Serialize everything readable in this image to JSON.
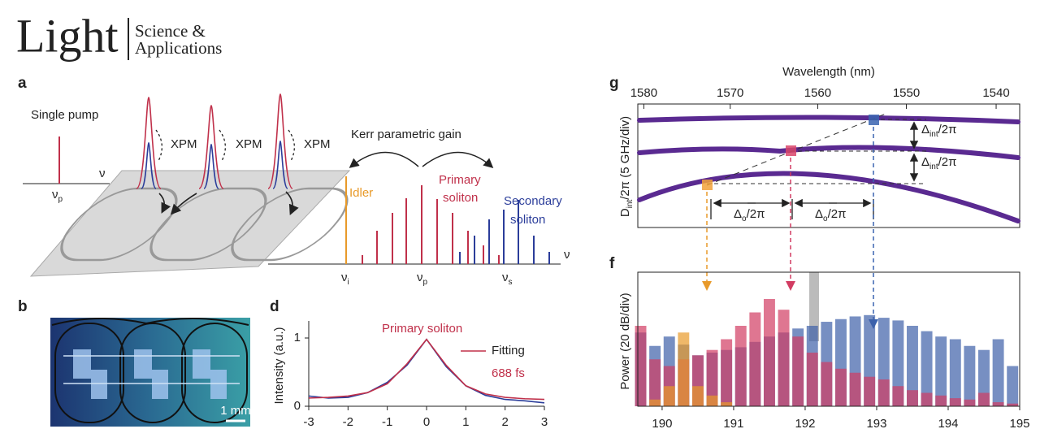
{
  "header": {
    "title": "Light",
    "subtitle_lines": [
      "Science &",
      "Applications"
    ]
  },
  "panel_a": {
    "label": "a",
    "single_pump": "Single pump",
    "axis_symbol": "ν",
    "pump": {
      "symbol": "ν",
      "sub": "p"
    },
    "xpm": [
      "XPM",
      "XPM",
      "XPM"
    ],
    "gain": "Kerr parametric gain",
    "idler": "Idler",
    "primary": [
      "Primary",
      "soliton"
    ],
    "secondary": [
      "Secondary",
      "soliton"
    ],
    "comb_axis_symbol": "ν",
    "comb_ticks": [
      {
        "symbol": "ν",
        "sub": "i"
      },
      {
        "symbol": "ν",
        "sub": "p"
      },
      {
        "symbol": "ν",
        "sub": "s"
      }
    ]
  },
  "panel_b": {
    "label": "b",
    "scale_bar": "1 mm"
  },
  "panel_g": {
    "label": "g",
    "xlabel": "Wavelength (nm)",
    "ylabel": {
      "main": "D",
      "sub": "int",
      "rest": "/2π (5 GHz/div)"
    },
    "xlim": [
      1580.7,
      1537.4
    ],
    "xticks": [
      1580,
      1570,
      1560,
      1550,
      1540
    ],
    "delta_int": {
      "main": "Δ",
      "sub": "int",
      "rest": "/2π"
    },
    "delta_o": {
      "main": "Δ",
      "sub": "o",
      "rest": "/2π"
    }
  },
  "chart_data": [
    {
      "type": "line",
      "label": "d",
      "annotation": "Primary soliton",
      "duration": "688 fs",
      "ylabel": "Intensity (a.u.)",
      "x": [
        -3,
        -2.5,
        -2,
        -1.5,
        -1,
        -0.5,
        0,
        0.5,
        1,
        1.5,
        2,
        2.5,
        3
      ],
      "series": [
        {
          "color": "#2b3d9a",
          "values": [
            0.15,
            0.12,
            0.13,
            0.2,
            0.35,
            0.6,
            0.98,
            0.58,
            0.3,
            0.16,
            0.1,
            0.08,
            0.05
          ]
        },
        {
          "name": "Fitting",
          "color": "#c0304a",
          "values": [
            0.12,
            0.13,
            0.15,
            0.2,
            0.33,
            0.62,
            0.98,
            0.6,
            0.3,
            0.18,
            0.13,
            0.11,
            0.1
          ]
        }
      ],
      "xlim": [
        -3,
        3
      ],
      "ylim": [
        0,
        1.25
      ],
      "xticks": [
        -3,
        -2,
        -1,
        0,
        1,
        2,
        3
      ],
      "yticks": [
        0,
        1
      ]
    },
    {
      "type": "bar",
      "label": "f",
      "ylabel": "Power (20 dB/div)",
      "x": [
        189.7,
        189.9,
        190.1,
        190.3,
        190.5,
        190.7,
        190.9,
        191.1,
        191.3,
        191.5,
        191.7,
        191.9,
        192.1,
        192.3,
        192.5,
        192.7,
        192.9,
        193.1,
        193.3,
        193.5,
        193.7,
        193.9,
        194.1,
        194.3,
        194.5,
        194.7,
        194.9
      ],
      "series": [
        {
          "color": "#3d5fa8",
          "values": [
            0.55,
            0.45,
            0.52,
            0.46,
            0.38,
            0.4,
            0.42,
            0.44,
            0.48,
            0.52,
            0.55,
            0.58,
            0.6,
            0.63,
            0.65,
            0.67,
            0.68,
            0.66,
            0.64,
            0.6,
            0.56,
            0.52,
            0.5,
            0.45,
            0.42,
            0.5,
            0.3
          ]
        },
        {
          "color": "#d23c62",
          "values": [
            0.6,
            0.35,
            0.3,
            0.35,
            0.38,
            0.42,
            0.5,
            0.6,
            0.7,
            0.8,
            0.72,
            0.52,
            0.4,
            0.33,
            0.28,
            0.25,
            0.22,
            0.2,
            0.15,
            0.12,
            0.1,
            0.08,
            0.06,
            0.05,
            0.1,
            0.03,
            0.02
          ]
        },
        {
          "color": "#e89a2a",
          "values": [
            0,
            0.05,
            0.15,
            0.55,
            0.15,
            0.08,
            0.03,
            0,
            0,
            0,
            0,
            0,
            0,
            0,
            0,
            0,
            0,
            0,
            0,
            0,
            0,
            0,
            0,
            0,
            0,
            0,
            0
          ]
        }
      ],
      "xlim": [
        189.66,
        195
      ],
      "xticks": [
        190,
        191,
        192,
        193,
        194,
        195
      ],
      "ylim": [
        0,
        1
      ]
    }
  ]
}
